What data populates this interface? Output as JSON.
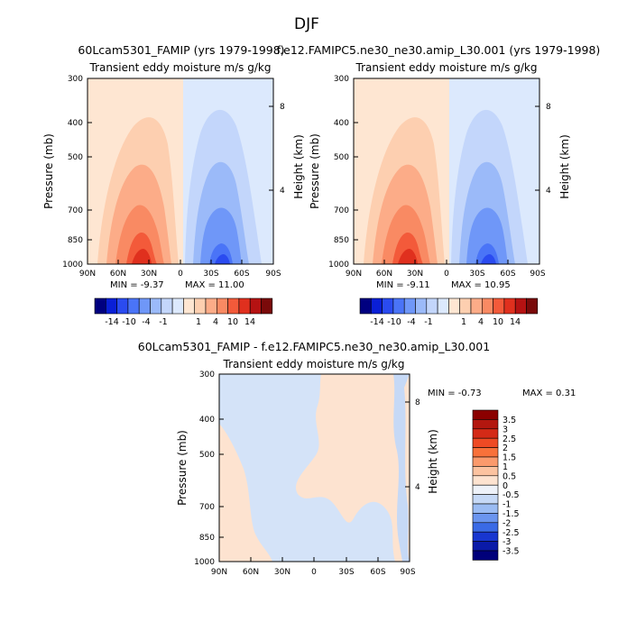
{
  "figure": {
    "season": "DJF",
    "panel1_title": "60Lcam5301_FAMIP (yrs 1979-1998)",
    "panel2_title": "f.e12.FAMIPC5.ne30_ne30.amip_L30.001 (yrs 1979-1998)",
    "diff_title": "60Lcam5301_FAMIP - f.e12.FAMIPC5.ne30_ne30.amip_L30.001",
    "subtitle": "Transient eddy moisture m/s g/kg",
    "ylabel": "Pressure (mb)",
    "ylabel_right": "Height (km)"
  },
  "chart_data": [
    {
      "type": "contour",
      "title": "60Lcam5301_FAMIP (yrs 1979-1998)",
      "subtitle": "Transient eddy moisture m/s g/kg",
      "xlabel": "",
      "ylabel": "Pressure (mb)",
      "ylabel_right": "Height (km)",
      "x_ticks": [
        "90N",
        "60N",
        "30N",
        "0",
        "30S",
        "60S",
        "90S"
      ],
      "y_ticks": [
        "300",
        "400",
        "500",
        "700",
        "850",
        "1000"
      ],
      "height_ticks": [
        "8",
        "4"
      ],
      "min_label": "MIN = -9.37",
      "max_label": "MAX = 11.00",
      "colorbar_labels": [
        "-14",
        "-10",
        "-4",
        "-1",
        "1",
        "4",
        "10",
        "14"
      ],
      "colors": [
        "#000080",
        "#0a1fd6",
        "#2a4bf0",
        "#4a74f7",
        "#6f97f8",
        "#9bbaf9",
        "#c3d6fb",
        "#dce9fd",
        "#fee6d2",
        "#fdcfb0",
        "#fcac88",
        "#f98a63",
        "#f35a3a",
        "#e0301e",
        "#b51212",
        "#7a0a0a"
      ]
    },
    {
      "type": "contour",
      "title": "f.e12.FAMIPC5.ne30_ne30.amip_L30.001 (yrs 1979-1998)",
      "subtitle": "Transient eddy moisture m/s g/kg",
      "xlabel": "",
      "ylabel": "Pressure (mb)",
      "ylabel_right": "Height (km)",
      "x_ticks": [
        "90N",
        "60N",
        "30N",
        "0",
        "30S",
        "60S",
        "90S"
      ],
      "y_ticks": [
        "300",
        "400",
        "500",
        "700",
        "850",
        "1000"
      ],
      "height_ticks": [
        "8",
        "4"
      ],
      "min_label": "MIN = -9.11",
      "max_label": "MAX = 10.95",
      "colorbar_labels": [
        "-14",
        "-10",
        "-4",
        "-1",
        "1",
        "4",
        "10",
        "14"
      ]
    },
    {
      "type": "contour",
      "title": "60Lcam5301_FAMIP - f.e12.FAMIPC5.ne30_ne30.amip_L30.001",
      "subtitle": "Transient eddy moisture m/s g/kg",
      "xlabel": "",
      "ylabel": "Pressure (mb)",
      "ylabel_right": "Height (km)",
      "x_ticks": [
        "90N",
        "60N",
        "30N",
        "0",
        "30S",
        "60S",
        "90S"
      ],
      "y_ticks": [
        "300",
        "400",
        "500",
        "700",
        "850",
        "1000"
      ],
      "height_ticks": [
        "8",
        "4"
      ],
      "min_label": "MIN = -0.73",
      "max_label": "MAX = 0.31",
      "colorbar_labels": [
        "3.5",
        "3",
        "2.5",
        "2",
        "1.5",
        "1",
        "0.5",
        "0",
        "-0.5",
        "-1",
        "-1.5",
        "-2",
        "-2.5",
        "-3",
        "-3.5"
      ],
      "colors": [
        "#8b0000",
        "#b3170f",
        "#d42a17",
        "#ee4a24",
        "#f8713a",
        "#fb9a6c",
        "#fcc3a0",
        "#fde3d0",
        "#eef2f9",
        "#c6d9f6",
        "#9bbcf3",
        "#6b95ef",
        "#3a6ae6",
        "#1836d0",
        "#0a1aa8",
        "#00007a"
      ]
    }
  ]
}
